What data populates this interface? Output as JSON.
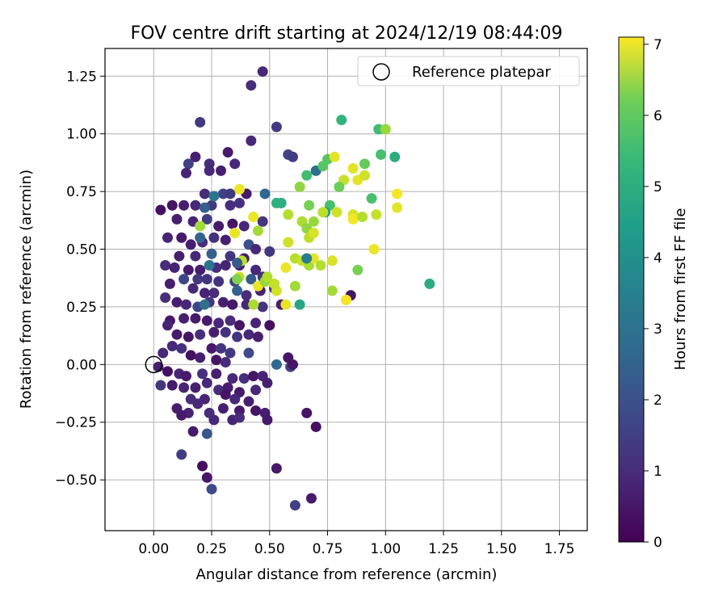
{
  "chart_data": {
    "type": "scatter",
    "title": "FOV centre drift starting at 2024/12/19 08:44:09",
    "xlabel": "Angular distance from reference (arcmin)",
    "ylabel": "Rotation from reference (arcmin)",
    "xlim": [
      -0.21,
      1.87
    ],
    "ylim": [
      -0.72,
      1.37
    ],
    "x_ticks": [
      0.0,
      0.25,
      0.5,
      0.75,
      1.0,
      1.25,
      1.5,
      1.75
    ],
    "x_tick_labels": [
      "0.00",
      "0.25",
      "0.50",
      "0.75",
      "1.00",
      "1.25",
      "1.50",
      "1.75"
    ],
    "y_ticks": [
      -0.5,
      -0.25,
      0.0,
      0.25,
      0.5,
      0.75,
      1.0,
      1.25
    ],
    "y_tick_labels": [
      "−0.50",
      "−0.25",
      "0.00",
      "0.25",
      "0.50",
      "0.75",
      "1.00",
      "1.25"
    ],
    "grid": true,
    "legend": {
      "label": "Reference platepar",
      "placement": "top-right"
    },
    "reference_point": {
      "x": 0.0,
      "y": 0.0
    },
    "colorbar": {
      "label": "Hours from first FF file",
      "colormap": "viridis",
      "range": [
        0,
        7.1
      ],
      "ticks": [
        0,
        1,
        2,
        3,
        4,
        5,
        6,
        7
      ],
      "tick_labels": [
        "0",
        "1",
        "2",
        "3",
        "4",
        "5",
        "6",
        "7"
      ]
    },
    "series": [
      {
        "points": [
          [
            0.47,
            1.27,
            0.8
          ],
          [
            0.42,
            1.21,
            0.9
          ],
          [
            0.53,
            1.03,
            1.2
          ],
          [
            0.2,
            1.05,
            1.2
          ],
          [
            0.42,
            0.97,
            0.8
          ],
          [
            0.18,
            0.9,
            0.6
          ],
          [
            0.32,
            0.92,
            0.5
          ],
          [
            0.58,
            0.91,
            1.5
          ],
          [
            0.15,
            0.87,
            1.4
          ],
          [
            0.24,
            0.87,
            0.9
          ],
          [
            0.35,
            0.87,
            0.8
          ],
          [
            0.14,
            0.83,
            0.7
          ],
          [
            0.24,
            0.84,
            0.8
          ],
          [
            0.29,
            0.84,
            0.6
          ],
          [
            0.6,
            0.9,
            1.3
          ],
          [
            0.22,
            0.74,
            0.9
          ],
          [
            0.3,
            0.74,
            1.4
          ],
          [
            0.33,
            0.74,
            1.2
          ],
          [
            0.4,
            0.74,
            0.5
          ],
          [
            0.48,
            0.74,
            2.4
          ],
          [
            0.08,
            0.69,
            0.4
          ],
          [
            0.13,
            0.69,
            0.6
          ],
          [
            0.18,
            0.69,
            0.8
          ],
          [
            0.25,
            0.69,
            1.2
          ],
          [
            0.33,
            0.69,
            0.9
          ],
          [
            0.37,
            0.7,
            1.0
          ],
          [
            0.03,
            0.67,
            0.3
          ],
          [
            0.1,
            0.63,
            0.6
          ],
          [
            0.17,
            0.62,
            0.7
          ],
          [
            0.23,
            0.63,
            1.3
          ],
          [
            0.28,
            0.6,
            0.5
          ],
          [
            0.34,
            0.61,
            0.4
          ],
          [
            0.39,
            0.6,
            0.8
          ],
          [
            0.47,
            0.62,
            1.1
          ],
          [
            0.06,
            0.55,
            0.7
          ],
          [
            0.12,
            0.55,
            0.5
          ],
          [
            0.16,
            0.52,
            0.6
          ],
          [
            0.21,
            0.53,
            0.9
          ],
          [
            0.26,
            0.55,
            1.0
          ],
          [
            0.31,
            0.54,
            0.6
          ],
          [
            0.41,
            0.52,
            1.8
          ],
          [
            0.44,
            0.5,
            0.8
          ],
          [
            0.5,
            0.49,
            1.2
          ],
          [
            0.11,
            0.47,
            0.6
          ],
          [
            0.18,
            0.47,
            0.8
          ],
          [
            0.25,
            0.48,
            2.2
          ],
          [
            0.33,
            0.47,
            1.1
          ],
          [
            0.39,
            0.46,
            0.5
          ],
          [
            0.05,
            0.43,
            0.9
          ],
          [
            0.09,
            0.42,
            0.7
          ],
          [
            0.15,
            0.41,
            0.5
          ],
          [
            0.2,
            0.41,
            0.6
          ],
          [
            0.27,
            0.42,
            0.9
          ],
          [
            0.31,
            0.43,
            0.7
          ],
          [
            0.37,
            0.43,
            0.6
          ],
          [
            0.44,
            0.41,
            0.8
          ],
          [
            0.13,
            0.37,
            1.5
          ],
          [
            0.19,
            0.37,
            1.2
          ],
          [
            0.23,
            0.37,
            1.1
          ],
          [
            0.28,
            0.36,
            1.0
          ],
          [
            0.35,
            0.36,
            1.3
          ],
          [
            0.42,
            0.37,
            2.0
          ],
          [
            0.47,
            0.38,
            1.1
          ],
          [
            0.07,
            0.35,
            0.6
          ],
          [
            0.17,
            0.33,
            0.8
          ],
          [
            0.22,
            0.31,
            0.7
          ],
          [
            0.26,
            0.31,
            0.9
          ],
          [
            0.36,
            0.32,
            2.2
          ],
          [
            0.4,
            0.3,
            0.9
          ],
          [
            0.46,
            0.32,
            0.7
          ],
          [
            0.52,
            0.33,
            1.1
          ],
          [
            0.1,
            0.27,
            0.6
          ],
          [
            0.14,
            0.26,
            0.8
          ],
          [
            0.19,
            0.25,
            1.5
          ],
          [
            0.24,
            0.27,
            1.1
          ],
          [
            0.3,
            0.27,
            0.6
          ],
          [
            0.34,
            0.26,
            0.5
          ],
          [
            0.4,
            0.26,
            0.8
          ],
          [
            0.47,
            0.25,
            1.1
          ],
          [
            0.55,
            0.26,
            0.6
          ],
          [
            0.05,
            0.29,
            0.9
          ],
          [
            0.22,
            0.26,
            2.6
          ],
          [
            0.07,
            0.19,
            0.4
          ],
          [
            0.13,
            0.2,
            0.6
          ],
          [
            0.18,
            0.2,
            0.5
          ],
          [
            0.23,
            0.19,
            0.5
          ],
          [
            0.28,
            0.18,
            0.8
          ],
          [
            0.33,
            0.19,
            0.9
          ],
          [
            0.37,
            0.17,
            0.4
          ],
          [
            0.44,
            0.18,
            0.7
          ],
          [
            0.5,
            0.17,
            0.3
          ],
          [
            0.06,
            0.17,
            0.7
          ],
          [
            0.1,
            0.13,
            0.5
          ],
          [
            0.15,
            0.12,
            0.4
          ],
          [
            0.2,
            0.13,
            0.9
          ],
          [
            0.26,
            0.14,
            0.6
          ],
          [
            0.31,
            0.14,
            1.0
          ],
          [
            0.36,
            0.12,
            1.1
          ],
          [
            0.41,
            0.13,
            0.8
          ],
          [
            0.45,
            0.12,
            0.6
          ],
          [
            0.08,
            0.08,
            0.8
          ],
          [
            0.12,
            0.07,
            1.0
          ],
          [
            0.25,
            0.07,
            0.5
          ],
          [
            0.29,
            0.07,
            1.1
          ],
          [
            0.33,
            0.05,
            1.2
          ],
          [
            0.41,
            0.05,
            1.6
          ],
          [
            0.04,
            0.05,
            0.8
          ],
          [
            0.16,
            0.04,
            0.3
          ],
          [
            0.2,
            0.03,
            0.6
          ],
          [
            0.27,
            0.02,
            0.4
          ],
          [
            0.31,
            0.01,
            0.9
          ],
          [
            0.58,
            0.03,
            0.4
          ],
          [
            0.59,
            -0.01,
            1.4
          ],
          [
            0.02,
            -0.01,
            0.6
          ],
          [
            0.06,
            -0.03,
            0.3
          ],
          [
            0.11,
            -0.04,
            0.7
          ],
          [
            0.14,
            -0.05,
            0.5
          ],
          [
            0.21,
            -0.04,
            1.0
          ],
          [
            0.27,
            -0.04,
            0.6
          ],
          [
            0.34,
            -0.06,
            0.8
          ],
          [
            0.39,
            -0.06,
            0.9
          ],
          [
            0.43,
            -0.05,
            0.4
          ],
          [
            0.47,
            -0.05,
            0.7
          ],
          [
            0.53,
            0.0,
            2.4
          ],
          [
            0.6,
            0.0,
            0.4
          ],
          [
            0.03,
            -0.09,
            1.1
          ],
          [
            0.08,
            -0.09,
            0.5
          ],
          [
            0.13,
            -0.1,
            0.7
          ],
          [
            0.18,
            -0.1,
            0.6
          ],
          [
            0.23,
            -0.08,
            0.8
          ],
          [
            0.28,
            -0.11,
            0.9
          ],
          [
            0.32,
            -0.1,
            0.6
          ],
          [
            0.37,
            -0.12,
            0.5
          ],
          [
            0.44,
            -0.11,
            0.8
          ],
          [
            0.49,
            -0.08,
            0.6
          ],
          [
            0.16,
            -0.15,
            0.9
          ],
          [
            0.22,
            -0.15,
            0.7
          ],
          [
            0.31,
            -0.13,
            0.4
          ],
          [
            0.35,
            -0.15,
            0.8
          ],
          [
            0.41,
            -0.16,
            0.6
          ],
          [
            0.1,
            -0.19,
            0.6
          ],
          [
            0.15,
            -0.21,
            0.7
          ],
          [
            0.19,
            -0.17,
            0.8
          ],
          [
            0.24,
            -0.21,
            0.9
          ],
          [
            0.3,
            -0.19,
            0.6
          ],
          [
            0.37,
            -0.2,
            0.5
          ],
          [
            0.44,
            -0.2,
            0.4
          ],
          [
            0.48,
            -0.21,
            0.6
          ],
          [
            0.12,
            -0.22,
            0.5
          ],
          [
            0.26,
            -0.24,
            0.8
          ],
          [
            0.34,
            -0.24,
            0.7
          ],
          [
            0.37,
            -0.23,
            0.9
          ],
          [
            0.49,
            -0.24,
            0.5
          ],
          [
            0.66,
            -0.21,
            0.4
          ],
          [
            0.7,
            -0.27,
            0.3
          ],
          [
            0.17,
            -0.29,
            0.5
          ],
          [
            0.23,
            -0.3,
            1.9
          ],
          [
            0.12,
            -0.39,
            1.3
          ],
          [
            0.21,
            -0.44,
            0.3
          ],
          [
            0.53,
            -0.45,
            0.5
          ],
          [
            0.23,
            -0.49,
            0.4
          ],
          [
            0.25,
            -0.54,
            1.6
          ],
          [
            0.61,
            -0.61,
            1.4
          ],
          [
            0.68,
            -0.58,
            0.5
          ],
          [
            0.85,
            0.3,
            0.4
          ],
          [
            0.55,
            0.7,
            4.4
          ],
          [
            0.67,
            0.69,
            5.6
          ],
          [
            0.63,
            0.77,
            5.9
          ],
          [
            0.66,
            0.82,
            4.9
          ],
          [
            0.7,
            0.84,
            2.6
          ],
          [
            0.73,
            0.86,
            5.2
          ],
          [
            0.75,
            0.89,
            5.2
          ],
          [
            0.78,
            0.9,
            6.8
          ],
          [
            0.81,
            1.06,
            4.6
          ],
          [
            0.97,
            1.02,
            4.9
          ],
          [
            1.0,
            1.02,
            6.0
          ],
          [
            1.04,
            0.9,
            4.4
          ],
          [
            0.98,
            0.91,
            5.0
          ],
          [
            0.91,
            0.87,
            5.4
          ],
          [
            0.86,
            0.85,
            6.8
          ],
          [
            0.82,
            0.8,
            6.5
          ],
          [
            0.88,
            0.8,
            6.8
          ],
          [
            0.91,
            0.82,
            6.6
          ],
          [
            0.8,
            0.77,
            5.5
          ],
          [
            0.76,
            0.69,
            5.0
          ],
          [
            0.79,
            0.66,
            6.6
          ],
          [
            0.74,
            0.66,
            4.0
          ],
          [
            0.69,
            0.62,
            6.0
          ],
          [
            0.64,
            0.62,
            6.2
          ],
          [
            0.58,
            0.65,
            6.3
          ],
          [
            0.66,
            0.59,
            5.9
          ],
          [
            0.67,
            0.55,
            6.4
          ],
          [
            0.69,
            0.57,
            6.7
          ],
          [
            0.73,
            0.66,
            6.4
          ],
          [
            0.86,
            0.65,
            6.7
          ],
          [
            0.86,
            0.63,
            7.0
          ],
          [
            0.9,
            0.64,
            6.3
          ],
          [
            0.94,
            0.72,
            5.0
          ],
          [
            0.96,
            0.65,
            6.5
          ],
          [
            1.05,
            0.74,
            7.0
          ],
          [
            1.05,
            0.68,
            6.8
          ],
          [
            0.95,
            0.5,
            6.9
          ],
          [
            0.58,
            0.53,
            6.6
          ],
          [
            0.61,
            0.46,
            6.3
          ],
          [
            0.64,
            0.45,
            6.5
          ],
          [
            0.67,
            0.43,
            6.2
          ],
          [
            0.69,
            0.46,
            6.8
          ],
          [
            0.72,
            0.43,
            6.3
          ],
          [
            0.77,
            0.45,
            6.7
          ],
          [
            0.66,
            0.46,
            3.0
          ],
          [
            0.88,
            0.41,
            5.6
          ],
          [
            1.19,
            0.35,
            4.4
          ],
          [
            0.77,
            0.32,
            6.1
          ],
          [
            0.83,
            0.28,
            7.0
          ],
          [
            0.57,
            0.42,
            6.9
          ],
          [
            0.61,
            0.34,
            6.1
          ],
          [
            0.53,
            0.32,
            6.6
          ],
          [
            0.57,
            0.26,
            6.9
          ],
          [
            0.63,
            0.26,
            4.2
          ],
          [
            0.37,
            0.76,
            6.9
          ],
          [
            0.43,
            0.64,
            6.9
          ],
          [
            0.45,
            0.58,
            6.1
          ],
          [
            0.2,
            0.6,
            6.1
          ],
          [
            0.35,
            0.57,
            6.9
          ],
          [
            0.38,
            0.45,
            6.4
          ],
          [
            0.37,
            0.38,
            6.6
          ],
          [
            0.45,
            0.34,
            6.9
          ],
          [
            0.48,
            0.36,
            6.0
          ],
          [
            0.49,
            0.38,
            6.3
          ],
          [
            0.52,
            0.35,
            6.5
          ],
          [
            0.36,
            0.37,
            5.7
          ],
          [
            0.43,
            0.26,
            6.2
          ],
          [
            0.26,
            0.73,
            2.8
          ],
          [
            0.22,
            0.68,
            2.1
          ],
          [
            0.2,
            0.55,
            2.3
          ],
          [
            0.24,
            0.43,
            2.7
          ],
          [
            0.36,
            0.44,
            2.0
          ],
          [
            0.53,
            0.7,
            4.5
          ]
        ]
      }
    ]
  }
}
